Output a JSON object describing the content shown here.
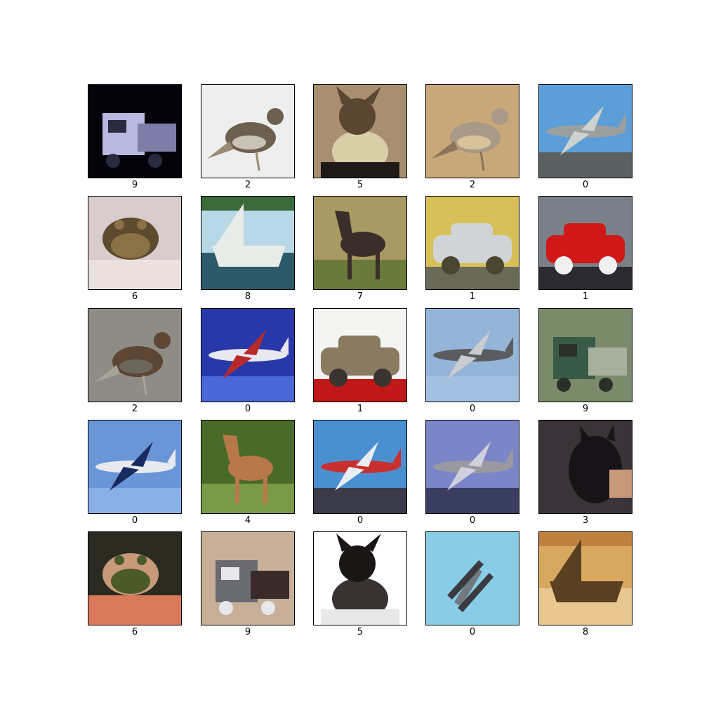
{
  "grid": {
    "rows": 5,
    "cols": 5,
    "images": [
      {
        "label": "9",
        "scene": "truck-night",
        "colors": {
          "bg": "#05040a",
          "a": "#b8b8e0",
          "b": "#2a2a40",
          "c": "#7d7da8"
        }
      },
      {
        "label": "2",
        "scene": "bird-light",
        "colors": {
          "bg": "#eeeeee",
          "a": "#6e6050",
          "b": "#9a8a74",
          "c": "#c9c2b6"
        }
      },
      {
        "label": "5",
        "scene": "dog-costume",
        "colors": {
          "bg": "#a88f70",
          "a": "#5a4633",
          "b": "#d8cfa8",
          "c": "#1e1a18"
        }
      },
      {
        "label": "2",
        "scene": "bird-round",
        "colors": {
          "bg": "#c8a878",
          "a": "#a89a86",
          "b": "#8c7258",
          "c": "#d8c29a"
        }
      },
      {
        "label": "0",
        "scene": "plane-ground",
        "colors": {
          "bg": "#5c9ed8",
          "a": "#9aa0a0",
          "b": "#cfd3d0",
          "c": "#5a6060"
        }
      },
      {
        "label": "6",
        "scene": "frog-pink",
        "colors": {
          "bg": "#d8cccc",
          "a": "#5e4a2e",
          "b": "#8a7246",
          "c": "#ebe2e0"
        }
      },
      {
        "label": "8",
        "scene": "boat-water",
        "colors": {
          "bg": "#b8d8e8",
          "a": "#e8ece8",
          "b": "#2c5a6a",
          "c": "#3a6a3a"
        }
      },
      {
        "label": "7",
        "scene": "horse-field",
        "colors": {
          "bg": "#a89a62",
          "a": "#3a2e2a",
          "b": "#6a7a3a",
          "c": "#c9b88a"
        }
      },
      {
        "label": "1",
        "scene": "car-silver",
        "colors": {
          "bg": "#d8c058",
          "a": "#d0d4d6",
          "b": "#4a4630",
          "c": "#6a6a58"
        }
      },
      {
        "label": "1",
        "scene": "car-red",
        "colors": {
          "bg": "#7a8088",
          "a": "#d01818",
          "b": "#f0f0f0",
          "c": "#2a2a30"
        }
      },
      {
        "label": "2",
        "scene": "bird-ground",
        "colors": {
          "bg": "#8e8c84",
          "a": "#5e4634",
          "b": "#a8a49a",
          "c": "#6a665c"
        }
      },
      {
        "label": "0",
        "scene": "plane-blue",
        "colors": {
          "bg": "#2838a8",
          "a": "#e8e8f0",
          "b": "#b82a2a",
          "c": "#4a68d8"
        }
      },
      {
        "label": "1",
        "scene": "car-brown",
        "colors": {
          "bg": "#f4f4f2",
          "a": "#8a7a62",
          "b": "#3a3430",
          "c": "#c01818"
        }
      },
      {
        "label": "0",
        "scene": "plane-sky",
        "colors": {
          "bg": "#94b4d8",
          "a": "#5a5c60",
          "b": "#c9ccd0",
          "c": "#a4c0e0"
        }
      },
      {
        "label": "9",
        "scene": "truck-green",
        "colors": {
          "bg": "#7a8a6a",
          "a": "#3a5a48",
          "b": "#2a3028",
          "c": "#a8b0a0"
        }
      },
      {
        "label": "0",
        "scene": "jet-blue",
        "colors": {
          "bg": "#6a96d8",
          "a": "#e8eaf0",
          "b": "#1a2a60",
          "c": "#8ab0e8"
        }
      },
      {
        "label": "4",
        "scene": "deer-forest",
        "colors": {
          "bg": "#4a6a2a",
          "a": "#b8784a",
          "b": "#7a9a48",
          "c": "#2a3a1a"
        }
      },
      {
        "label": "0",
        "scene": "plane-clouds",
        "colors": {
          "bg": "#4a90d0",
          "a": "#c83030",
          "b": "#e8eef4",
          "c": "#3a3a48"
        }
      },
      {
        "label": "0",
        "scene": "fighter-sky",
        "colors": {
          "bg": "#7a86c8",
          "a": "#9a98a0",
          "b": "#cfd0dc",
          "c": "#3a3e60"
        }
      },
      {
        "label": "3",
        "scene": "cat-arm",
        "colors": {
          "bg": "#3a3438",
          "a": "#161416",
          "b": "#c8987a",
          "c": "#8a8a8a"
        }
      },
      {
        "label": "6",
        "scene": "frog-dark",
        "colors": {
          "bg": "#2a2a20",
          "a": "#c89a7a",
          "b": "#4a5a2a",
          "c": "#d87a5a"
        }
      },
      {
        "label": "9",
        "scene": "truck-grey",
        "colors": {
          "bg": "#c8b098",
          "a": "#6a6a72",
          "b": "#e8e8ec",
          "c": "#3a2a2a"
        }
      },
      {
        "label": "5",
        "scene": "dog-black",
        "colors": {
          "bg": "#ffffff",
          "a": "#1a1616",
          "b": "#3a3232",
          "c": "#e8e8e8"
        }
      },
      {
        "label": "0",
        "scene": "biplane",
        "colors": {
          "bg": "#88cce6",
          "a": "#707a80",
          "b": "#3a3a40",
          "c": "#a8dcef"
        }
      },
      {
        "label": "8",
        "scene": "sailboat-sunset",
        "colors": {
          "bg": "#d8a860",
          "a": "#5a4020",
          "b": "#e8c890",
          "c": "#c08040"
        }
      }
    ]
  }
}
